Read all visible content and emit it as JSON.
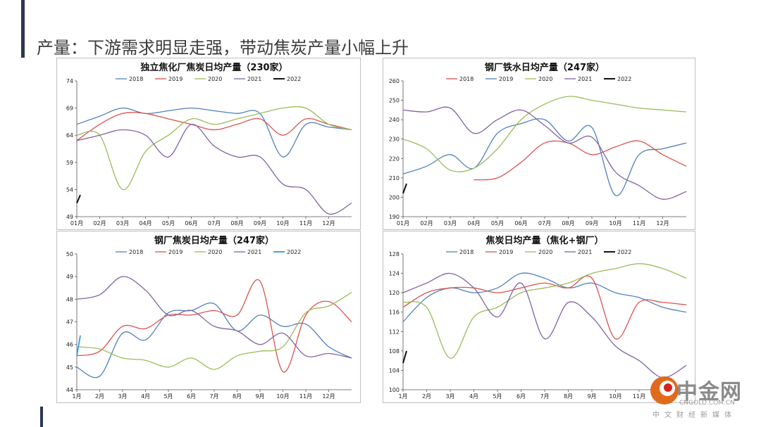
{
  "slide": {
    "title": "产量：下游需求明显走强，带动焦炭产量小幅上升"
  },
  "watermark": {
    "name": "中金网",
    "domain": "CNGOLD.COM.CN",
    "tagline": "中文财经新媒体"
  },
  "series_colors": {
    "2018": "#4f81bd",
    "2019": "#d9534f",
    "2020": "#9bbb59",
    "2021": "#8064a2",
    "2022": "#111111"
  },
  "chart_data": [
    {
      "type": "line",
      "title": "独立焦化厂焦炭日均产量（230家）",
      "x_labels": [
        "01月",
        "02月",
        "03月",
        "04月",
        "05月",
        "06月",
        "07月",
        "08月",
        "09月",
        "10月",
        "11月",
        "12月"
      ],
      "ylim": [
        49,
        74
      ],
      "yticks": [
        49,
        54,
        59,
        64,
        69,
        74
      ],
      "series": [
        {
          "name": "2018",
          "color": "#4f81bd",
          "values": [
            66,
            67.5,
            69,
            68,
            68.5,
            69,
            68.5,
            68,
            68,
            60,
            66,
            65.5,
            65
          ]
        },
        {
          "name": "2019",
          "color": "#d9534f",
          "values": [
            63,
            66,
            68,
            68,
            67,
            66,
            65,
            66,
            67,
            64,
            67,
            66,
            65
          ]
        },
        {
          "name": "2020",
          "color": "#9bbb59",
          "values": [
            64,
            64,
            54,
            61,
            64,
            67,
            66,
            67,
            68,
            69,
            69,
            66,
            65
          ]
        },
        {
          "name": "2021",
          "color": "#8064a2",
          "values": [
            63,
            64,
            65,
            64,
            60,
            66,
            62,
            60,
            60,
            55,
            54,
            49.5,
            51.5
          ]
        },
        {
          "name": "2022",
          "color": "#111111",
          "values": [
            51.5,
            53
          ]
        }
      ]
    },
    {
      "type": "line",
      "title": "钢厂铁水日均产量（247家）",
      "x_labels": [
        "01月",
        "02月",
        "03月",
        "04月",
        "05月",
        "06月",
        "07月",
        "08月",
        "09月",
        "10月",
        "11月",
        "12月"
      ],
      "ylim": [
        190,
        260
      ],
      "yticks": [
        190,
        200,
        210,
        220,
        230,
        240,
        250,
        260
      ],
      "series": [
        {
          "name": "2018",
          "color": "#d9534f",
          "values": [
            null,
            null,
            null,
            209,
            210,
            218,
            228,
            228,
            222,
            226,
            229,
            222,
            216
          ]
        },
        {
          "name": "2019",
          "color": "#4f81bd",
          "values": [
            212,
            216,
            222,
            215,
            233,
            238,
            240,
            229,
            236,
            201,
            222,
            225,
            228
          ]
        },
        {
          "name": "2020",
          "color": "#9bbb59",
          "values": [
            230,
            225,
            214,
            215,
            225,
            240,
            248,
            252,
            250,
            248,
            246,
            245,
            244
          ]
        },
        {
          "name": "2021",
          "color": "#8064a2",
          "values": [
            245,
            244,
            246,
            233,
            240,
            245,
            237,
            228,
            231,
            213,
            206,
            199,
            203
          ]
        },
        {
          "name": "2022",
          "color": "#111111",
          "values": [
            202,
            207
          ]
        }
      ]
    },
    {
      "type": "line",
      "title": "钢厂焦炭日均产量（247家）",
      "x_labels": [
        "1月",
        "2月",
        "3月",
        "4月",
        "5月",
        "6月",
        "7月",
        "8月",
        "9月",
        "10月",
        "11月",
        "12月"
      ],
      "ylim": [
        44,
        50
      ],
      "yticks": [
        44,
        45,
        46,
        47,
        48,
        49,
        50
      ],
      "series": [
        {
          "name": "2018",
          "color": "#4f81bd",
          "values": [
            45,
            44.6,
            46.5,
            46.2,
            47.4,
            47.5,
            47.8,
            46.6,
            47.3,
            46.8,
            46.9,
            45.9,
            45.4
          ]
        },
        {
          "name": "2019",
          "color": "#d9534f",
          "values": [
            45.5,
            45.7,
            46.8,
            46.7,
            47.3,
            47.3,
            47.5,
            47.3,
            48.8,
            44.8,
            47.3,
            47.9,
            47
          ]
        },
        {
          "name": "2020",
          "color": "#9bbb59",
          "values": [
            45.9,
            45.8,
            45.4,
            45.3,
            45,
            45.4,
            44.9,
            45.5,
            45.7,
            45.9,
            47.4,
            47.7,
            48.3
          ]
        },
        {
          "name": "2021",
          "color": "#8064a2",
          "values": [
            48,
            48.2,
            49,
            48.4,
            47.3,
            47.5,
            46.8,
            46.6,
            46,
            46.5,
            45.5,
            45.6,
            45.4
          ]
        },
        {
          "name": "2022",
          "color": "#4aa3d6",
          "values": [
            45.5,
            46.4
          ]
        }
      ]
    },
    {
      "type": "line",
      "title": "焦炭日均产量（焦化+钢厂）",
      "x_labels": [
        "1月",
        "2月",
        "3月",
        "4月",
        "5月",
        "6月",
        "7月",
        "8月",
        "9月",
        "10月",
        "11月",
        "12月"
      ],
      "ylim": [
        100,
        128
      ],
      "yticks": [
        100,
        104,
        108,
        112,
        116,
        120,
        124,
        128
      ],
      "series": [
        {
          "name": "2018",
          "color": "#4f81bd",
          "values": [
            114,
            119,
            121,
            120,
            121,
            124,
            123,
            121,
            122,
            120,
            119,
            117,
            116
          ]
        },
        {
          "name": "2019",
          "color": "#d9534f",
          "values": [
            117,
            120,
            121,
            121,
            120,
            121,
            122,
            121,
            123,
            110.5,
            118,
            118,
            117.5
          ]
        },
        {
          "name": "2020",
          "color": "#9bbb59",
          "values": [
            118,
            117,
            106.5,
            115,
            117,
            120,
            121,
            122,
            124,
            125,
            126,
            125,
            123
          ]
        },
        {
          "name": "2021",
          "color": "#8064a2",
          "values": [
            120,
            122,
            124,
            121,
            115,
            122,
            110.5,
            118,
            115,
            109,
            106,
            102.5,
            105
          ]
        },
        {
          "name": "2022",
          "color": "#111111",
          "values": [
            105.5,
            108
          ]
        }
      ]
    }
  ]
}
